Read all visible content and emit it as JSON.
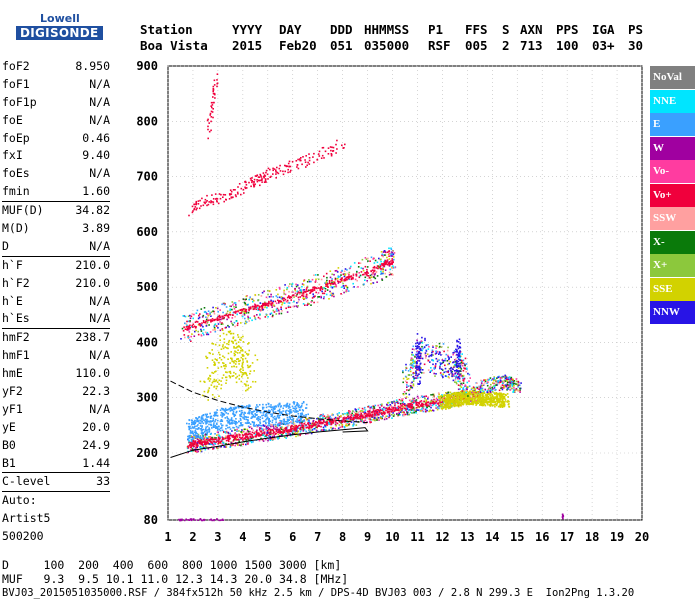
{
  "logo": {
    "line1": "Lowell",
    "line2": "DIGISONDE"
  },
  "header": {
    "row1": [
      "Station",
      "YYYY",
      "DAY",
      "DDD",
      "HHMMSS",
      "P1",
      "FFS",
      "S",
      "AXN",
      "PPS",
      "IGA",
      "PS"
    ],
    "row2": [
      "Boa Vista",
      "2015",
      "Feb20",
      "051",
      "035000",
      "RSF",
      "005",
      "2",
      "713",
      "100",
      "03+",
      "30"
    ]
  },
  "params": [
    {
      "k": "foF2",
      "v": "8.950"
    },
    {
      "k": "foF1",
      "v": "N/A"
    },
    {
      "k": "foF1p",
      "v": "N/A"
    },
    {
      "k": "foE",
      "v": "N/A"
    },
    {
      "k": "foEp",
      "v": "0.46"
    },
    {
      "k": "fxI",
      "v": "9.40"
    },
    {
      "k": "foEs",
      "v": "N/A"
    },
    {
      "k": "fmin",
      "v": "1.60",
      "sep": true
    },
    {
      "k": "MUF(D)",
      "v": "34.82"
    },
    {
      "k": "M(D)",
      "v": "3.89"
    },
    {
      "k": "D",
      "v": "N/A",
      "sep": true
    },
    {
      "k": "h`F",
      "v": "210.0"
    },
    {
      "k": "h`F2",
      "v": "210.0"
    },
    {
      "k": "h`E",
      "v": "N/A"
    },
    {
      "k": "h`Es",
      "v": "N/A",
      "sep": true
    },
    {
      "k": "hmF2",
      "v": "238.7"
    },
    {
      "k": "hmF1",
      "v": "N/A"
    },
    {
      "k": "hmE",
      "v": "110.0"
    },
    {
      "k": "yF2",
      "v": "22.3"
    },
    {
      "k": "yF1",
      "v": "N/A"
    },
    {
      "k": "yE",
      "v": "20.0"
    },
    {
      "k": "B0",
      "v": "24.9"
    },
    {
      "k": "B1",
      "v": "1.44",
      "sep": true
    },
    {
      "k": "C-level",
      "v": "33",
      "sep": true
    },
    {
      "k": "Auto:",
      "v": ""
    },
    {
      "k": "Artist5",
      "v": ""
    },
    {
      "k": "500200",
      "v": ""
    }
  ],
  "legend": [
    {
      "label": "NoVal",
      "color": "#808080"
    },
    {
      "label": "NNE",
      "color": "#00e5ff"
    },
    {
      "label": "E",
      "color": "#3aa0ff"
    },
    {
      "label": "W",
      "color": "#a000a0"
    },
    {
      "label": "Vo-",
      "color": "#ff3ca0"
    },
    {
      "label": "Vo+",
      "color": "#f0003c"
    },
    {
      "label": "SSW",
      "color": "#ffa0a0"
    },
    {
      "label": "X-",
      "color": "#0a7a0a"
    },
    {
      "label": "X+",
      "color": "#8cc83c"
    },
    {
      "label": "SSE",
      "color": "#d2d200"
    },
    {
      "label": "NNW",
      "color": "#2814e6"
    }
  ],
  "footer": {
    "line1": "D     100  200  400  600  800 1000 1500 3000 [km]",
    "line2": "MUF   9.3  9.5 10.1 11.0 12.3 14.3 20.0 34.8 [MHz]",
    "line3": "BVJ03_2015051035000.RSF / 384fx512h 50 kHz 2.5 km / DPS-4D BVJ03 003 / 2.8 N 299.3 E  Ion2Png 1.3.20"
  },
  "chart_data": {
    "type": "scatter",
    "xlim": [
      1,
      20
    ],
    "ylim": [
      80,
      900
    ],
    "xticks": [
      1,
      2,
      3,
      4,
      5,
      6,
      7,
      8,
      9,
      10,
      11,
      12,
      13,
      14,
      15,
      16,
      17,
      18,
      19,
      20
    ],
    "yticks": [
      80,
      200,
      300,
      400,
      500,
      600,
      700,
      800,
      900
    ],
    "grid": true,
    "series": [
      {
        "color": "#f0003c",
        "x": [
          1.8,
          2.5,
          3.5,
          4.5,
          5.5,
          6.5,
          7.5,
          8.5,
          9.5,
          10.5,
          11.5,
          12.5,
          13.5
        ],
        "y": [
          215,
          222,
          228,
          235,
          242,
          250,
          258,
          267,
          276,
          285,
          292,
          300,
          308
        ]
      },
      {
        "color": "#3aa0ff",
        "x": [
          1.8,
          2.5,
          3.5,
          4.5,
          5.5,
          6.5
        ],
        "y": [
          240,
          255,
          265,
          270,
          272,
          275
        ]
      },
      {
        "color": "#f0003c",
        "x": [
          1.6,
          2.5,
          3.5,
          4.5,
          5.5,
          6.5,
          7.5,
          8.5,
          9.5,
          10.0
        ],
        "y": [
          425,
          440,
          452,
          465,
          478,
          492,
          508,
          522,
          538,
          550
        ]
      },
      {
        "color": "#f0003c",
        "x": [
          1.8,
          2.5,
          3.5,
          4.3,
          5.0,
          6.0,
          7.0,
          8.0
        ],
        "y": [
          640,
          655,
          670,
          690,
          705,
          720,
          740,
          760
        ]
      },
      {
        "color": "#d2d200",
        "x": [
          12.0,
          12.5,
          13.0,
          13.5,
          14.0,
          14.5
        ],
        "y": [
          292,
          298,
          302,
          300,
          298,
          296
        ]
      },
      {
        "color": "#2814e6",
        "x": [
          11.0,
          12.7,
          16.8
        ],
        "y": [
          370,
          370,
          85
        ]
      }
    ]
  }
}
